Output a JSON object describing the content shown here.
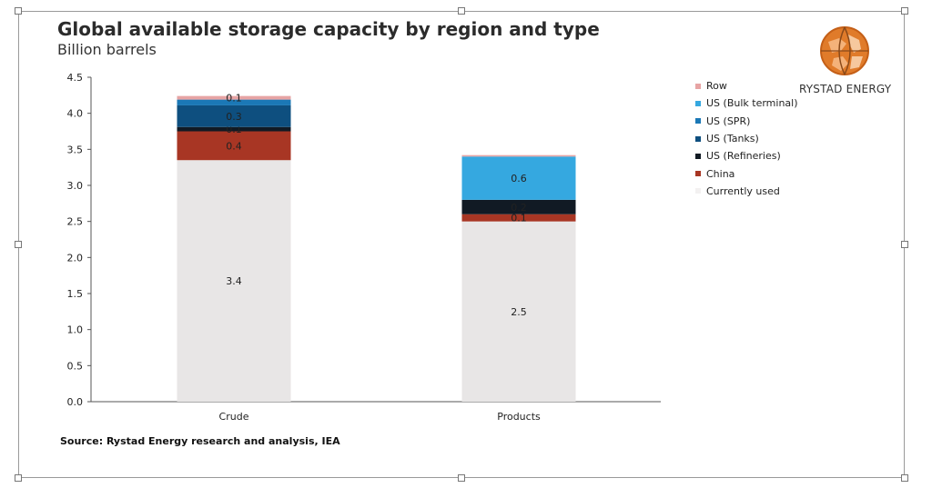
{
  "title": "Global available storage capacity by region and type",
  "subtitle": "Billion barrels",
  "source": "Source: Rystad Energy research and analysis, IEA",
  "logo_text": "RYSTAD ENERGY",
  "logo_icon": "rystad-globe-logo",
  "colors": {
    "Currently used": "#e8e6e6",
    "China": "#a83624",
    "US (Refineries)": "#111a24",
    "US (Tanks)": "#0e4f7f",
    "US (SPR)": "#1b78b6",
    "US (Bulk terminal)": "#35a8e0",
    "Row": "#e7a4a4"
  },
  "chart_data": {
    "type": "bar",
    "stacked": true,
    "categories": [
      "Crude",
      "Products"
    ],
    "series": [
      {
        "name": "Currently used",
        "values": [
          3.35,
          2.5
        ],
        "labels": [
          "3.4",
          "2.5"
        ]
      },
      {
        "name": "China",
        "values": [
          0.4,
          0.1
        ],
        "labels": [
          "0.4",
          "0.1"
        ]
      },
      {
        "name": "US (Refineries)",
        "values": [
          0.06,
          0.2
        ],
        "labels": [
          "0.1",
          "0.2"
        ]
      },
      {
        "name": "US (Tanks)",
        "values": [
          0.3,
          0.0
        ],
        "labels": [
          "0.3",
          ""
        ]
      },
      {
        "name": "US (SPR)",
        "values": [
          0.08,
          0.0
        ],
        "labels": [
          "",
          ""
        ]
      },
      {
        "name": "US (Bulk terminal)",
        "values": [
          0.0,
          0.6
        ],
        "labels": [
          "",
          "0.6"
        ]
      },
      {
        "name": "Row",
        "values": [
          0.05,
          0.02
        ],
        "labels": [
          "0.1",
          ""
        ]
      }
    ],
    "legend_order": [
      "Row",
      "US (Bulk terminal)",
      "US (SPR)",
      "US (Tanks)",
      "US (Refineries)",
      "China",
      "Currently used"
    ],
    "yticks": [
      "0.0",
      "0.5",
      "1.0",
      "1.5",
      "2.0",
      "2.5",
      "3.0",
      "3.5",
      "4.0",
      "4.5"
    ],
    "ylim": [
      0,
      4.5
    ],
    "xlabel": "",
    "ylabel": "",
    "legend_position": "right",
    "grid": false
  }
}
